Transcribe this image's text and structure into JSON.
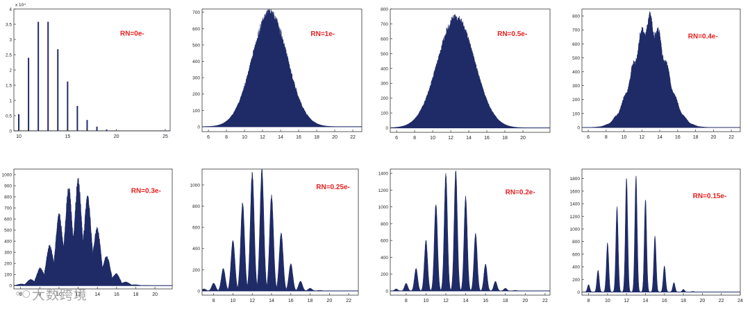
{
  "colors": {
    "fill": "#1f2b66",
    "label": "#e4201f",
    "axis": "#333333"
  },
  "watermark": {
    "text": "大数跨境"
  },
  "chart_data": [
    {
      "type": "bar",
      "label": "RN=0e-",
      "exponent": "x 10⁴",
      "xlim": [
        9.5,
        25.5
      ],
      "xticks": [
        10,
        15,
        20,
        25
      ],
      "ylim": [
        0,
        4
      ],
      "yticks": [
        0,
        0.5,
        1,
        1.5,
        2,
        2.5,
        3,
        3.5,
        4
      ],
      "x": [
        10,
        11,
        12,
        13,
        14,
        15,
        16,
        17,
        18,
        19,
        20
      ],
      "values": [
        0.55,
        2.4,
        3.58,
        3.58,
        2.68,
        1.62,
        0.82,
        0.36,
        0.14,
        0.05,
        0.01
      ]
    },
    {
      "type": "area",
      "label": "RN=1e-",
      "mu": 12.8,
      "sigma": 1.95,
      "peak": 690,
      "noise": 0.05,
      "xlim": [
        5.3,
        23
      ],
      "xticks": [
        6,
        8,
        10,
        12,
        14,
        16,
        18,
        20,
        22
      ],
      "ylim": [
        -30,
        720
      ],
      "yticks": [
        0,
        100,
        200,
        300,
        400,
        500,
        600,
        700
      ]
    },
    {
      "type": "area",
      "label": "RN=0.5e-",
      "mu": 12.6,
      "sigma": 2.05,
      "peak": 740,
      "noise": 0.04,
      "xlim": [
        5.3,
        23
      ],
      "xticks": [
        6,
        8,
        10,
        12,
        14,
        16,
        18,
        20
      ],
      "ylim": [
        -30,
        800
      ],
      "yticks": [
        0,
        100,
        200,
        300,
        400,
        500,
        600,
        700,
        800
      ]
    },
    {
      "type": "area",
      "label": "RN=0.4e-",
      "mu": 12.9,
      "sigma": 1.8,
      "peak": 740,
      "noise": 0.05,
      "ripple": 0.08,
      "xlim": [
        5.3,
        23
      ],
      "xticks": [
        6,
        8,
        10,
        12,
        14,
        16,
        18,
        20,
        22
      ],
      "ylim": [
        -30,
        850
      ],
      "yticks": [
        0,
        100,
        200,
        300,
        400,
        500,
        600,
        700,
        800
      ]
    },
    {
      "type": "area",
      "label": "RN=0.3e-",
      "mu": 11.8,
      "sigma": 2.0,
      "peak": 940,
      "noise": 0.05,
      "ripple": 0.28,
      "comb_sigma": 0.3,
      "xlim": [
        5.3,
        21.8
      ],
      "xticks": [
        6,
        8,
        10,
        12,
        14,
        16,
        18,
        20
      ],
      "ylim": [
        -30,
        1050
      ],
      "yticks": [
        0,
        100,
        200,
        300,
        400,
        500,
        600,
        700,
        800,
        900,
        1000
      ]
    },
    {
      "type": "area",
      "label": "RN=0.25e-",
      "mu": 12.6,
      "sigma": 1.95,
      "peak": 1160,
      "noise": 0.02,
      "comb_sigma": 0.2,
      "xlim": [
        6.8,
        23
      ],
      "xticks": [
        8,
        10,
        12,
        14,
        16,
        18,
        20,
        22
      ],
      "ylim": [
        -40,
        1150
      ],
      "yticks": [
        0,
        200,
        400,
        600,
        800,
        1000
      ]
    },
    {
      "type": "area",
      "label": "RN=0.2e-",
      "mu": 12.6,
      "sigma": 1.95,
      "peak": 1450,
      "noise": 0.02,
      "comb_sigma": 0.16,
      "xlim": [
        6.4,
        22.5
      ],
      "xticks": [
        8,
        10,
        12,
        14,
        16,
        18,
        20,
        22
      ],
      "ylim": [
        -50,
        1450
      ],
      "yticks": [
        0,
        200,
        400,
        600,
        800,
        1000,
        1200,
        1400
      ]
    },
    {
      "type": "area",
      "label": "RN=0.15e-",
      "mu": 12.6,
      "sigma": 1.95,
      "peak": 1880,
      "noise": 0.02,
      "comb_sigma": 0.12,
      "xlim": [
        7.3,
        24
      ],
      "xticks": [
        8,
        10,
        12,
        14,
        16,
        18,
        20,
        22,
        24
      ],
      "ylim": [
        -50,
        1950
      ],
      "yticks": [
        0,
        200,
        400,
        600,
        800,
        1000,
        1200,
        1400,
        1600,
        1800
      ]
    }
  ]
}
